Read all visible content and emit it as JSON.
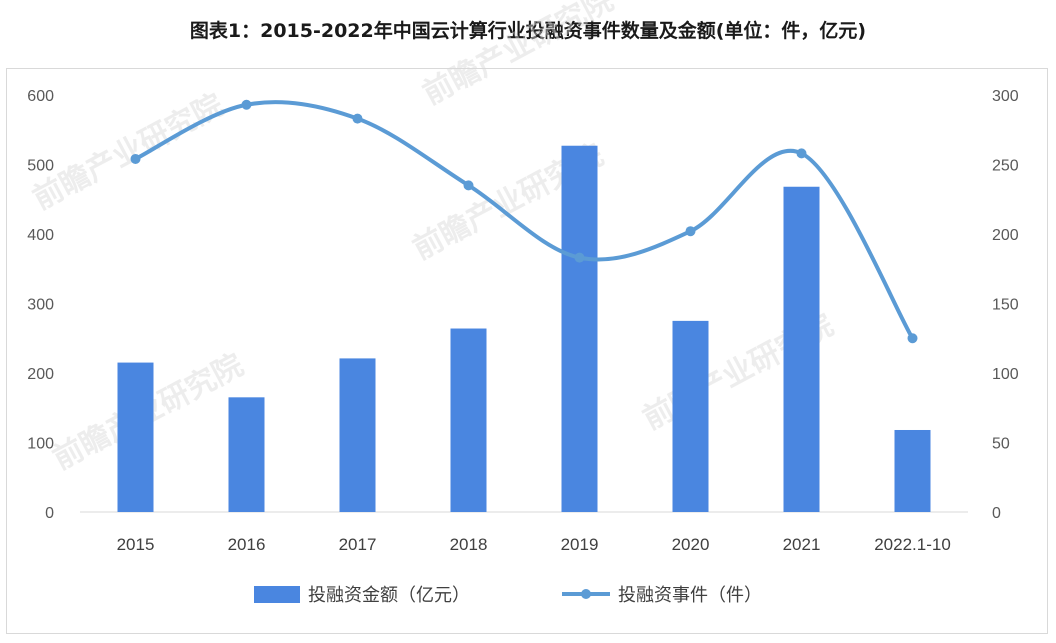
{
  "title": "图表1：2015-2022年中国云计算行业投融资事件数量及金额(单位：件，亿元)",
  "watermark": "前瞻产业研究院",
  "chart_data": {
    "type": "bar+line",
    "categories": [
      "2015",
      "2016",
      "2017",
      "2018",
      "2019",
      "2020",
      "2021",
      "2022.1-10"
    ],
    "series": [
      {
        "name": "投融资金额（亿元）",
        "type": "bar",
        "axis": "left",
        "color": "#4a86e0",
        "values": [
          215,
          165,
          221,
          264,
          527,
          275,
          468,
          118
        ]
      },
      {
        "name": "投融资事件（件）",
        "type": "line",
        "axis": "right",
        "color": "#5b9bd5",
        "values": [
          254,
          293,
          283,
          235,
          183,
          202,
          258,
          125
        ]
      }
    ],
    "y_left": {
      "min": 0,
      "max": 600,
      "ticks": [
        "0",
        "100",
        "200",
        "300",
        "400",
        "500",
        "600"
      ]
    },
    "y_right": {
      "min": 0,
      "max": 300,
      "ticks": [
        "0",
        "50",
        "100",
        "150",
        "200",
        "250",
        "300"
      ]
    },
    "legend_position": "bottom",
    "grid": false
  }
}
